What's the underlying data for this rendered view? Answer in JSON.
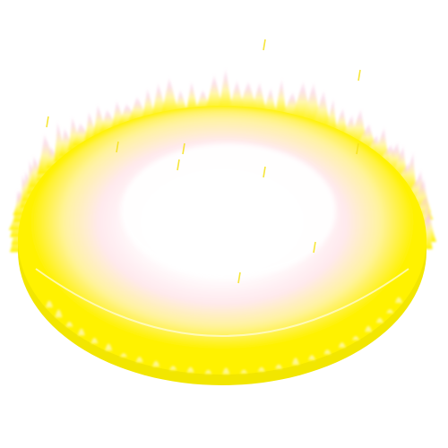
{
  "effect": {
    "name": "flame-ring-aura",
    "colors": {
      "core": "#ffffff",
      "glow": "#fff9c4",
      "pink_haze": "#ffd6e0",
      "ring": "#fff200",
      "ring_shadow": "#f2e600",
      "flame_tip": "#f7b6d6",
      "spark": "#f5e21a"
    }
  }
}
